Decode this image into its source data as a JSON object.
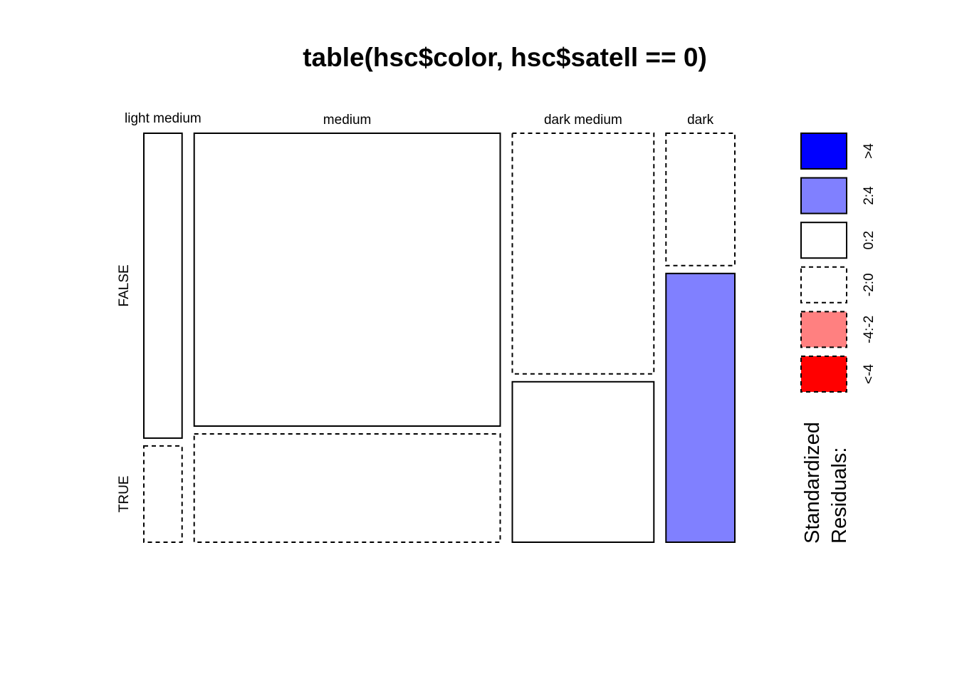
{
  "chart_data": {
    "type": "mosaic",
    "title": "table(hsc$color, hsc$satell == 0)",
    "columns": [
      "light medium",
      "medium",
      "dark medium",
      "dark"
    ],
    "rows": [
      "FALSE",
      "TRUE"
    ],
    "column_widths": [
      1,
      8,
      3.7,
      1.8
    ],
    "row_split_within_column": [
      0.76,
      0.73,
      0.6,
      0.33
    ],
    "residual_class": [
      [
        "0:2",
        "-2:0"
      ],
      [
        "0:2",
        "-2:0"
      ],
      [
        "-2:0",
        "0:2"
      ],
      [
        "-2:0",
        "2:4"
      ]
    ],
    "legend": {
      "title_line1": "Standardized",
      "title_line2": "Residuals:",
      "entries": [
        {
          "label": ">4",
          "fill": "#0000ff",
          "dashed": false
        },
        {
          "label": "2:4",
          "fill": "#8080ff",
          "dashed": false
        },
        {
          "label": "0:2",
          "fill": "#ffffff",
          "dashed": false
        },
        {
          "label": "-2:0",
          "fill": "#ffffff",
          "dashed": true
        },
        {
          "label": "-4:-2",
          "fill": "#ff8080",
          "dashed": true
        },
        {
          "label": "<-4",
          "fill": "#ff0000",
          "dashed": true
        }
      ]
    }
  }
}
